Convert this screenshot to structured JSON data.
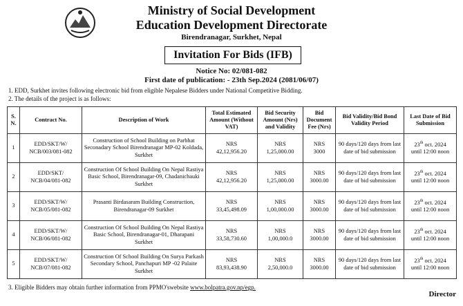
{
  "header": {
    "title": "Ministry of Social Development",
    "subtitle": "Education Development Directorate",
    "address": "Birendranagar, Surkhet, Nepal",
    "banner": "Invitation For Bids (IFB)",
    "notice": "Notice No: 02/081-082",
    "publication": "First date of publication: - 23th Sep.2024 (2081/06/07)"
  },
  "points": [
    "1.  EDD, Surkhet invites following electronic bid from eligible Nepalese Bidders under National Competitive Bidding.",
    "2.  The details of the project is as follows:"
  ],
  "table": {
    "columns": [
      "S. N.",
      "Contract No.",
      "Description of Work",
      "Total Estimated Amount (Without VAT)",
      "Bid Security Amount (Nrs) and Validity",
      "Bid Document Fee (Nrs)",
      "Bid Validity/Bid Bond Validity Period",
      "Last Date of Bid Submission"
    ],
    "rows": [
      {
        "sn": "1",
        "contract": [
          "EDD/SKT/W/",
          "NCB/003/081-082"
        ],
        "description": "Construction of School  Building on Parbhat Seconadary School Birendranagar MP-02 Koldada, Surkhet",
        "amount": [
          "NRS",
          "42,12,956.20"
        ],
        "security": [
          "NRS",
          "1,25,000.00"
        ],
        "fee": [
          "NRS",
          "3000"
        ],
        "validity": "90 days/120 days from last date of bid submission",
        "deadline": {
          "day": "23",
          "suffix": "th",
          "date": " oct. 2024",
          "time": "until 12:00 noon"
        }
      },
      {
        "sn": "2",
        "contract": [
          "EDD/SKT/",
          "NCB/04/081-082"
        ],
        "description": "Construction Of  School Building On  Nepal Rastiya Basic School, Birendranagar-09, Chadanichauki Surkhet",
        "amount": [
          "NRS",
          "42,12,956.20"
        ],
        "security": [
          "NRS",
          "1,25,000.00"
        ],
        "fee": [
          "NRS",
          "3000.00"
        ],
        "validity": "90 days/120 days from last date of bid submission",
        "deadline": {
          "day": "23",
          "suffix": "th",
          "date": " oct. 2024",
          "time": "until 12:00 noon"
        }
      },
      {
        "sn": "3",
        "contract": [
          "EDD/SKT/W/",
          "NCB/05/081-082"
        ],
        "description": "Prasanti Birdasaram  Building Construction, Birendranagar-09  Surkhet",
        "amount": [
          "NRS",
          "33,45,498.09"
        ],
        "security": [
          "NRS",
          "1,00,000.00"
        ],
        "fee": [
          "NRS",
          "3000.00"
        ],
        "validity": "90 days/120 days from last date of bid submission",
        "deadline": {
          "day": "23",
          "suffix": "th",
          "date": " oct. 2024",
          "time": "until 12:00 noon"
        }
      },
      {
        "sn": "4",
        "contract": [
          "EDD/SKT/W/",
          "NCB/06/081-082"
        ],
        "description": "Construction Of  School Building On  Nepal Rastiya Basic School, Birendranagar-01, Dharapani Surkhet",
        "amount": [
          "NRS",
          "33,58,730.60"
        ],
        "security": [
          "NRS",
          "1,00,000.0"
        ],
        "fee": [
          "NRS",
          "3000.00"
        ],
        "validity": "90 days/120 days from last date of bid submission",
        "deadline": {
          "day": "23",
          "suffix": "th",
          "date": " oct. 2024",
          "time": "until 12:00 noon"
        }
      },
      {
        "sn": "5",
        "contract": [
          "EDD/SKT/W/",
          "NCB/07/081-082"
        ],
        "description": "Construction Of  School Building On  Surya Parkash Secondary  School, Panchapuri MP -02 Palaite Surkhet",
        "amount": [
          "NRS",
          "83,93,438.90"
        ],
        "security": [
          "NRS",
          "2,50,000.0"
        ],
        "fee": [
          "NRS",
          "3000.00"
        ],
        "validity": "90 days/120 days from last date of bid submission",
        "deadline": {
          "day": "23",
          "suffix": "th",
          "date": " oct. 2024",
          "time": "until 12:00 noon"
        }
      }
    ]
  },
  "footer": {
    "note": "3.  Eligible Bidders may obtain further information from PPMO'swebsite",
    "link": "www.bolpatra.gov.np/egp.",
    "signature": "Director"
  }
}
